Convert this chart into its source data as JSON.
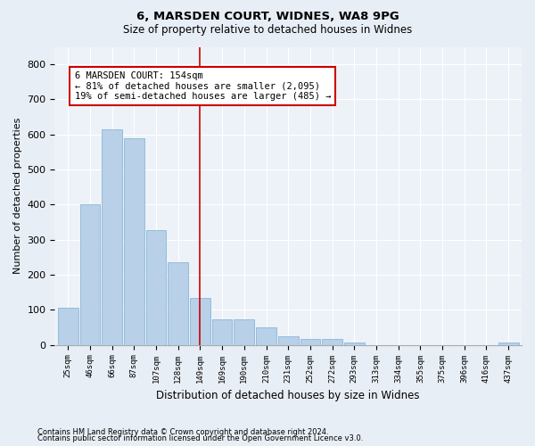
{
  "title1": "6, MARSDEN COURT, WIDNES, WA8 9PG",
  "title2": "Size of property relative to detached houses in Widnes",
  "xlabel": "Distribution of detached houses by size in Widnes",
  "ylabel": "Number of detached properties",
  "bar_color": "#b8d0e8",
  "bar_edge_color": "#7aafd4",
  "categories": [
    "25sqm",
    "46sqm",
    "66sqm",
    "87sqm",
    "107sqm",
    "128sqm",
    "149sqm",
    "169sqm",
    "190sqm",
    "210sqm",
    "231sqm",
    "252sqm",
    "272sqm",
    "293sqm",
    "313sqm",
    "334sqm",
    "355sqm",
    "375sqm",
    "396sqm",
    "416sqm",
    "437sqm"
  ],
  "values": [
    105,
    400,
    615,
    590,
    328,
    235,
    135,
    73,
    73,
    50,
    25,
    17,
    17,
    8,
    0,
    0,
    0,
    0,
    0,
    0,
    7
  ],
  "vline_idx": 6,
  "vline_color": "#cc0000",
  "annotation_line1": "6 MARSDEN COURT: 154sqm",
  "annotation_line2": "← 81% of detached houses are smaller (2,095)",
  "annotation_line3": "19% of semi-detached houses are larger (485) →",
  "annotation_box_color": "#ffffff",
  "annotation_box_edge": "#cc0000",
  "ylim": [
    0,
    850
  ],
  "yticks": [
    0,
    100,
    200,
    300,
    400,
    500,
    600,
    700,
    800
  ],
  "footnote1": "Contains HM Land Registry data © Crown copyright and database right 2024.",
  "footnote2": "Contains public sector information licensed under the Open Government Licence v3.0.",
  "bg_color": "#e8eef5",
  "plot_bg_color": "#edf2f8",
  "grid_color": "#ffffff",
  "title1_fontsize": 9.5,
  "title2_fontsize": 8.5
}
